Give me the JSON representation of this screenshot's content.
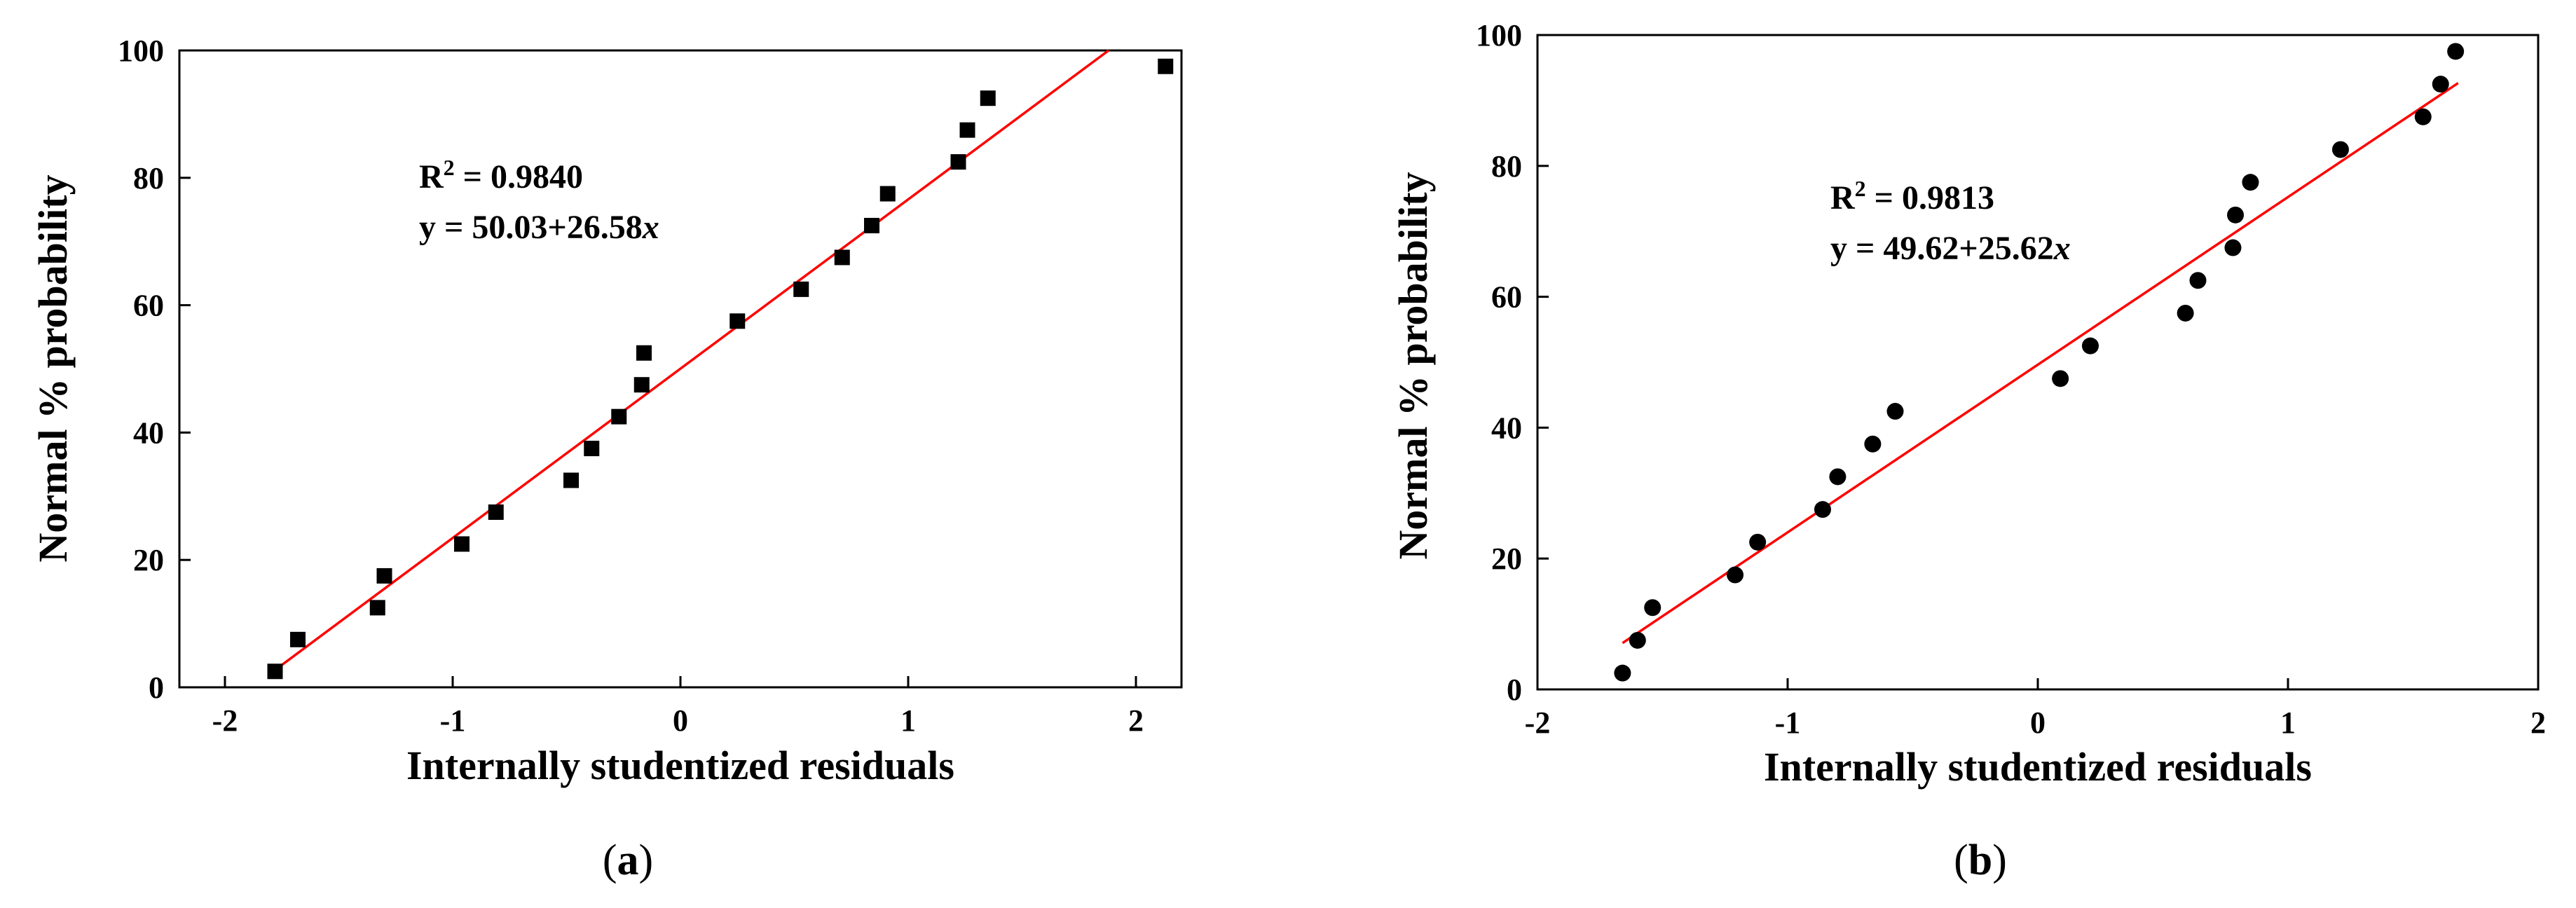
{
  "chart_data": [
    {
      "type": "scatter",
      "panel": "(a)",
      "caption_paren_open": "(",
      "caption_letter": "a",
      "caption_paren_close": ")",
      "xlabel": "Internally studentized residuals",
      "ylabel": "Normal % probability",
      "xlim": [
        -2.2,
        2.2
      ],
      "ylim": [
        0,
        100
      ],
      "xticks": [
        -2,
        -1,
        0,
        1,
        2
      ],
      "xtick_labels": [
        "-2",
        "-1",
        "0",
        "1",
        "2"
      ],
      "yticks": [
        0,
        20,
        40,
        60,
        80,
        100
      ],
      "ytick_labels": [
        "0",
        "20",
        "40",
        "60",
        "80",
        "100"
      ],
      "marker": "square",
      "marker_color": "#000000",
      "fit_color": "#ff0000",
      "fit": {
        "intercept": 50.03,
        "slope": 26.58,
        "x_from": -1.78,
        "x_to": 1.88
      },
      "annotation": {
        "r2_label": "R",
        "r2_sup": "2",
        "r2_value": " = 0.9840",
        "eq_text": "y = 50.03+26.58",
        "eq_var": "x"
      },
      "points": [
        {
          "x": -1.78,
          "y": 2.5
        },
        {
          "x": -1.68,
          "y": 7.5
        },
        {
          "x": -1.33,
          "y": 12.5
        },
        {
          "x": -1.3,
          "y": 17.5
        },
        {
          "x": -0.96,
          "y": 22.5
        },
        {
          "x": -0.81,
          "y": 27.5
        },
        {
          "x": -0.48,
          "y": 32.5
        },
        {
          "x": -0.39,
          "y": 37.5
        },
        {
          "x": -0.27,
          "y": 42.5
        },
        {
          "x": -0.17,
          "y": 47.5
        },
        {
          "x": -0.16,
          "y": 52.5
        },
        {
          "x": 0.25,
          "y": 57.5
        },
        {
          "x": 0.53,
          "y": 62.5
        },
        {
          "x": 0.71,
          "y": 67.5
        },
        {
          "x": 0.84,
          "y": 72.5
        },
        {
          "x": 0.91,
          "y": 77.5
        },
        {
          "x": 1.22,
          "y": 82.5
        },
        {
          "x": 1.26,
          "y": 87.5
        },
        {
          "x": 1.35,
          "y": 92.5
        },
        {
          "x": 2.13,
          "y": 97.5
        }
      ]
    },
    {
      "type": "scatter",
      "panel": "(b)",
      "caption_paren_open": "(",
      "caption_letter": "b",
      "caption_paren_close": ")",
      "xlabel": "Internally studentized residuals",
      "ylabel": "Normal % probability",
      "xlim": [
        -2,
        2
      ],
      "ylim": [
        0,
        100
      ],
      "xticks": [
        -2,
        -1,
        0,
        1,
        2
      ],
      "xtick_labels": [
        "-2",
        "-1",
        "0",
        "1",
        "2"
      ],
      "yticks": [
        0,
        20,
        40,
        60,
        80,
        100
      ],
      "ytick_labels": [
        "0",
        "20",
        "40",
        "60",
        "80",
        "100"
      ],
      "marker": "circle",
      "marker_color": "#000000",
      "fit_color": "#ff0000",
      "fit": {
        "intercept": 49.62,
        "slope": 25.62,
        "x_from": -1.66,
        "x_to": 1.68
      },
      "annotation": {
        "r2_label": "R",
        "r2_sup": "2",
        "r2_value": " = 0.9813",
        "eq_text": "y = 49.62+25.62",
        "eq_var": "x"
      },
      "points": [
        {
          "x": -1.66,
          "y": 2.5
        },
        {
          "x": -1.6,
          "y": 7.5
        },
        {
          "x": -1.54,
          "y": 12.5
        },
        {
          "x": -1.21,
          "y": 17.5
        },
        {
          "x": -1.12,
          "y": 22.5
        },
        {
          "x": -0.86,
          "y": 27.5
        },
        {
          "x": -0.8,
          "y": 32.5
        },
        {
          "x": -0.66,
          "y": 37.5
        },
        {
          "x": -0.57,
          "y": 42.5
        },
        {
          "x": 0.09,
          "y": 47.5
        },
        {
          "x": 0.21,
          "y": 52.5
        },
        {
          "x": 0.59,
          "y": 57.5
        },
        {
          "x": 0.64,
          "y": 62.5
        },
        {
          "x": 0.78,
          "y": 67.5
        },
        {
          "x": 0.79,
          "y": 72.5
        },
        {
          "x": 0.85,
          "y": 77.5
        },
        {
          "x": 1.21,
          "y": 82.5
        },
        {
          "x": 1.54,
          "y": 87.5
        },
        {
          "x": 1.61,
          "y": 92.5
        },
        {
          "x": 1.67,
          "y": 97.5
        }
      ]
    }
  ]
}
